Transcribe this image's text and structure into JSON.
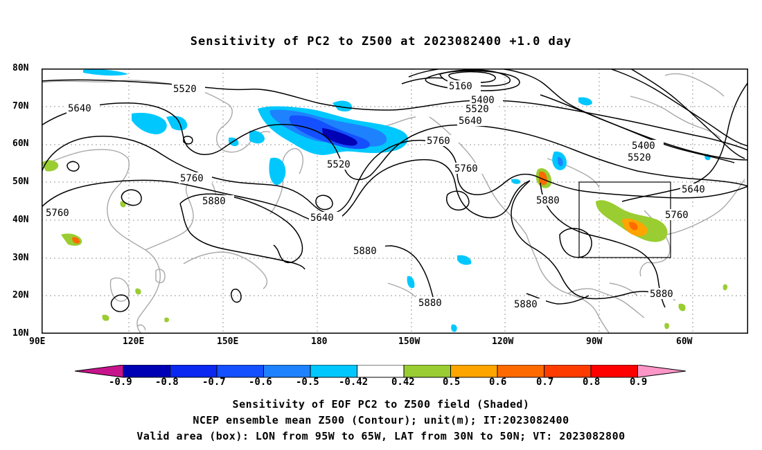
{
  "title": "Sensitivity of PC2 to Z500 at 2023082400 +1.0 day",
  "map": {
    "lat_labels": [
      "80N",
      "70N",
      "60N",
      "50N",
      "40N",
      "30N",
      "20N",
      "10N"
    ],
    "lon_labels": [
      "90E",
      "120E",
      "150E",
      "180",
      "150W",
      "120W",
      "90W",
      "60W"
    ],
    "contour_labels": [
      {
        "text": "5520"
      },
      {
        "text": "5640"
      },
      {
        "text": "5160"
      },
      {
        "text": "5400"
      },
      {
        "text": "5520"
      },
      {
        "text": "5640"
      },
      {
        "text": "5760"
      },
      {
        "text": "5520"
      },
      {
        "text": "5760"
      },
      {
        "text": "5760"
      },
      {
        "text": "5880"
      },
      {
        "text": "5760"
      },
      {
        "text": "5640"
      },
      {
        "text": "5880"
      },
      {
        "text": "5880"
      },
      {
        "text": "5880"
      },
      {
        "text": "5880"
      },
      {
        "text": "5400"
      },
      {
        "text": "5520"
      },
      {
        "text": "5640"
      },
      {
        "text": "5760"
      },
      {
        "text": "5880"
      }
    ],
    "valid_box": {
      "lon_from": "95W",
      "lon_to": "65W",
      "lat_from": "30N",
      "lat_to": "50N"
    }
  },
  "colorbar": {
    "labels": [
      "-0.9",
      "-0.8",
      "-0.7",
      "-0.6",
      "-0.5",
      "-0.42",
      "0.42",
      "0.5",
      "0.6",
      "0.7",
      "0.8",
      "0.9"
    ],
    "colors": [
      "#0000b4",
      "#0a28f0",
      "#1450ff",
      "#1e82ff",
      "#00c8ff",
      "#ffffff",
      "#9acd32",
      "#ffa500",
      "#ff6a00",
      "#ff3c00",
      "#ff0000"
    ],
    "low_arrow_color": "#c8148c",
    "high_arrow_color": "#ff96c8"
  },
  "captions": [
    "Sensitivity of EOF PC2 to Z500 field (Shaded)",
    "NCEP ensemble mean Z500 (Contour); unit(m); IT:2023082400",
    "Valid area (box): LON from 95W to 65W, LAT from 30N to 50N; VT: 2023082800"
  ]
}
